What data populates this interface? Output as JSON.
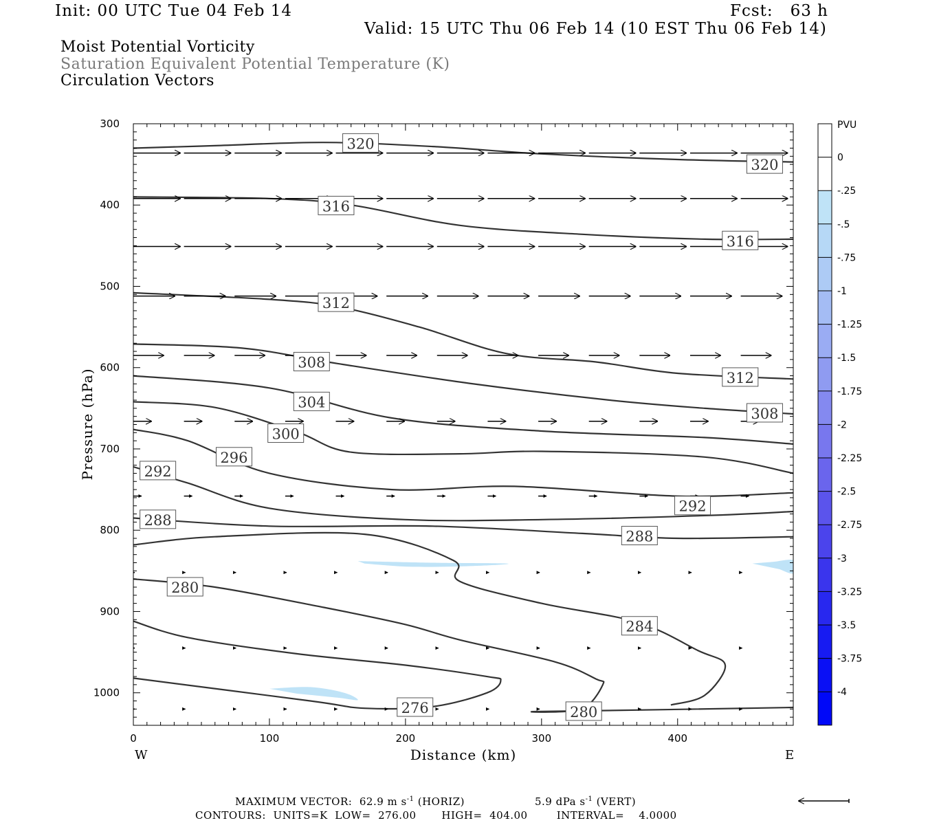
{
  "header": {
    "init": "Init: 00 UTC Tue 04 Feb 14",
    "fcst": "Fcst:   63 h",
    "valid": "Valid: 15 UTC Thu 06 Feb 14 (10 EST Thu 06 Feb 14)",
    "line1": "Moist Potential Vorticity",
    "line2": "Saturation Equivalent Potential Temperature (K)",
    "line3": "Circulation Vectors"
  },
  "footer": {
    "max_vector": "MAXIMUM VECTOR:  62.9 m s",
    "max_vector_horiz": " (HORIZ)",
    "max_vector_vert_val": "5.9 dPa s",
    "max_vector_vert": " (VERT)",
    "exp": "-1",
    "contours": "CONTOURS:  UNITS=K  LOW=  276.00       HIGH=  404.00        INTERVAL=    4.0000"
  },
  "colors": {
    "contour": "#333333",
    "pv_fill": "#bfe3f7",
    "vector": "#000000"
  },
  "chart_data": {
    "type": "cross-section",
    "xlabel": "Distance (km)",
    "ylabel": "Pressure (hPa)",
    "x_range": [
      0,
      485
    ],
    "y_range": [
      1040,
      300
    ],
    "x_ticks": [
      "0",
      "100",
      "200",
      "300",
      "400"
    ],
    "x_tick_values": [
      0,
      100,
      200,
      300,
      400
    ],
    "y_ticks": [
      "300",
      "400",
      "500",
      "600",
      "700",
      "800",
      "900",
      "1000"
    ],
    "y_tick_values": [
      300,
      400,
      500,
      600,
      700,
      800,
      900,
      1000
    ],
    "west_label": "W",
    "east_label": "E",
    "colorbar": {
      "units": "PVU",
      "labels": [
        "0",
        "-.25",
        "-.5",
        "-.75",
        "-1",
        "-1.25",
        "-1.5",
        "-1.75",
        "-2",
        "-2.25",
        "-2.5",
        "-2.75",
        "-3",
        "-3.25",
        "-3.5",
        "-3.75",
        "-4"
      ],
      "colors": [
        "#ffffff",
        "#ffffff",
        "#bfe3f7",
        "#b6d8f6",
        "#adcbf5",
        "#a4bcf4",
        "#9aacf3",
        "#8f9bf1",
        "#8489f0",
        "#7877ee",
        "#6a65ed",
        "#5b54ec",
        "#4b44ec",
        "#3a35ed",
        "#2828ef",
        "#171bf2",
        "#0a10f5",
        "#0008f8"
      ]
    },
    "contours": [
      {
        "value": 320,
        "label": "320",
        "points": [
          [
            0,
            330
          ],
          [
            60,
            327
          ],
          [
            140,
            323
          ],
          [
            220,
            328
          ],
          [
            300,
            337
          ],
          [
            400,
            344
          ],
          [
            485,
            347
          ]
        ],
        "labels_at": [
          [
            167,
            324
          ],
          [
            464,
            350
          ]
        ]
      },
      {
        "value": 316,
        "label": "316",
        "points": [
          [
            0,
            390
          ],
          [
            100,
            392
          ],
          [
            160,
            400
          ],
          [
            240,
            425
          ],
          [
            330,
            436
          ],
          [
            420,
            442
          ],
          [
            485,
            442
          ]
        ],
        "labels_at": [
          [
            149,
            401
          ],
          [
            446,
            444
          ]
        ]
      },
      {
        "value": 312,
        "label": "312",
        "points": [
          [
            0,
            508
          ],
          [
            100,
            516
          ],
          [
            150,
            525
          ],
          [
            210,
            550
          ],
          [
            275,
            583
          ],
          [
            340,
            593
          ],
          [
            400,
            607
          ],
          [
            485,
            614
          ]
        ],
        "labels_at": [
          [
            149,
            520
          ],
          [
            446,
            612
          ]
        ]
      },
      {
        "value": 308,
        "label": "308",
        "points": [
          [
            0,
            571
          ],
          [
            80,
            576
          ],
          [
            150,
            595
          ],
          [
            250,
            620
          ],
          [
            350,
            640
          ],
          [
            420,
            650
          ],
          [
            485,
            657
          ]
        ],
        "labels_at": [
          [
            131,
            593
          ],
          [
            464,
            656
          ]
        ]
      },
      {
        "value": 304,
        "label": "304",
        "points": [
          [
            0,
            610
          ],
          [
            100,
            625
          ],
          [
            190,
            662
          ],
          [
            300,
            678
          ],
          [
            420,
            686
          ],
          [
            485,
            694
          ]
        ],
        "labels_at": [
          [
            131,
            642
          ]
        ]
      },
      {
        "value": 300,
        "label": "300",
        "points": [
          [
            0,
            642
          ],
          [
            60,
            649
          ],
          [
            120,
            679
          ],
          [
            160,
            704
          ],
          [
            240,
            706
          ],
          [
            300,
            703
          ],
          [
            420,
            710
          ],
          [
            485,
            730
          ]
        ],
        "labels_at": [
          [
            112,
            681
          ]
        ]
      },
      {
        "value": 296,
        "label": "296",
        "points": [
          [
            0,
            676
          ],
          [
            40,
            690
          ],
          [
            100,
            730
          ],
          [
            190,
            750
          ],
          [
            280,
            746
          ],
          [
            400,
            758
          ],
          [
            485,
            754
          ]
        ],
        "labels_at": [
          [
            74,
            710
          ]
        ]
      },
      {
        "value": 292,
        "label": "292",
        "points": [
          [
            0,
            722
          ],
          [
            40,
            742
          ],
          [
            100,
            773
          ],
          [
            200,
            787
          ],
          [
            300,
            787
          ],
          [
            420,
            782
          ],
          [
            485,
            777
          ]
        ],
        "labels_at": [
          [
            18,
            727
          ],
          [
            411,
            770
          ]
        ]
      },
      {
        "value": 288,
        "label": "288",
        "points": [
          [
            0,
            785
          ],
          [
            100,
            795
          ],
          [
            220,
            795
          ],
          [
            330,
            804
          ],
          [
            400,
            810
          ],
          [
            485,
            808
          ]
        ],
        "labels_at": [
          [
            18,
            787
          ],
          [
            372,
            807
          ]
        ]
      },
      {
        "value": 284,
        "label": "284",
        "points": [
          [
            0,
            818
          ],
          [
            60,
            808
          ],
          [
            170,
            805
          ],
          [
            235,
            837
          ],
          [
            240,
            863
          ],
          [
            300,
            890
          ],
          [
            370,
            913
          ],
          [
            415,
            948
          ],
          [
            435,
            966
          ],
          [
            420,
            1003
          ],
          [
            395,
            1015
          ]
        ],
        "labels_at": [
          [
            372,
            918
          ]
        ]
      },
      {
        "value": 280,
        "label": "280",
        "points": [
          [
            0,
            860
          ],
          [
            60,
            870
          ],
          [
            140,
            895
          ],
          [
            200,
            916
          ],
          [
            240,
            935
          ],
          [
            310,
            962
          ],
          [
            340,
            983
          ],
          [
            345,
            990
          ],
          [
            330,
            1020
          ],
          [
            300,
            1023
          ],
          [
            485,
            1018
          ]
        ],
        "labels_at": [
          [
            38,
            870
          ],
          [
            331,
            1023
          ]
        ]
      },
      {
        "value": 276,
        "label": "276",
        "points": [
          [
            0,
            912
          ],
          [
            40,
            932
          ],
          [
            120,
            952
          ],
          [
            200,
            966
          ],
          [
            260,
            980
          ],
          [
            270,
            985
          ],
          [
            260,
            1000
          ],
          [
            220,
            1017
          ],
          [
            170,
            1019
          ],
          [
            130,
            1010
          ],
          [
            0,
            982
          ]
        ],
        "labels_at": [
          [
            207,
            1018
          ]
        ]
      }
    ],
    "pv_areas": [
      {
        "value": -0.5,
        "points": [
          [
            165,
            838
          ],
          [
            220,
            840
          ],
          [
            275,
            841
          ],
          [
            250,
            844
          ],
          [
            205,
            845
          ],
          [
            170,
            841
          ]
        ]
      },
      {
        "value": -0.5,
        "points": [
          [
            455,
            841
          ],
          [
            470,
            839
          ],
          [
            485,
            837
          ],
          [
            485,
            853
          ],
          [
            475,
            848
          ]
        ]
      },
      {
        "value": -0.5,
        "points": [
          [
            100,
            995
          ],
          [
            130,
            993
          ],
          [
            155,
            1000
          ],
          [
            165,
            1009
          ],
          [
            150,
            1006
          ],
          [
            120,
            1001
          ]
        ]
      }
    ],
    "vector_rows": [
      {
        "p": 336,
        "u": 34,
        "w": 0
      },
      {
        "p": 392,
        "u": 34,
        "w": 0
      },
      {
        "p": 451,
        "u": 34,
        "w": 0
      },
      {
        "p": 512,
        "u": 30,
        "w": 0
      },
      {
        "p": 585,
        "u": 22,
        "w": 0
      },
      {
        "p": 666,
        "u": 13,
        "w": 0
      },
      {
        "p": 758,
        "u": 6,
        "w": 0
      },
      {
        "p": 852,
        "u": 1,
        "w": 0
      },
      {
        "p": 945,
        "u": 1,
        "w": 0
      },
      {
        "p": 1020,
        "u": 1,
        "w": 0
      }
    ],
    "reference_vector": {
      "direction": "west"
    }
  }
}
